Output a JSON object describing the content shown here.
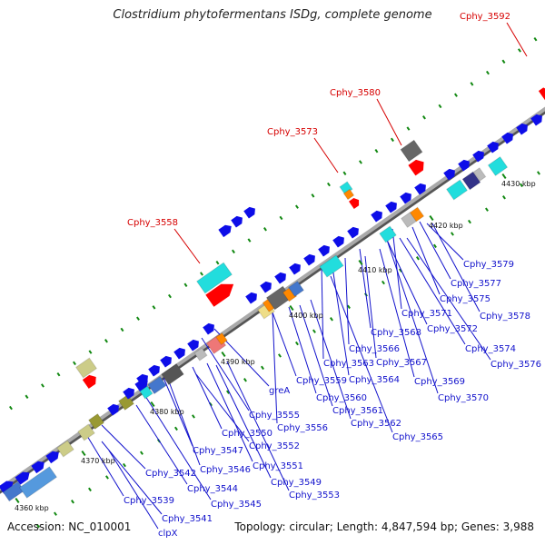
{
  "header": {
    "title": "Clostridium phytofermentans ISDg, complete genome"
  },
  "footer": {
    "accession": "Accession: NC_010001",
    "summary": "Topology: circular; Length: 4,847,594 bp; Genes: 3,988"
  },
  "ruler": {
    "ticks": [
      {
        "label": "4360 kbp"
      },
      {
        "label": "4370 kbp"
      },
      {
        "label": "4380 kbp"
      },
      {
        "label": "4390 kbp"
      },
      {
        "label": "4400 kbp"
      },
      {
        "label": "4410 kbp"
      },
      {
        "label": "4420 kbp"
      },
      {
        "label": "4430 kbp"
      }
    ]
  },
  "gene_labels": [
    {
      "label": "Cphy_3592",
      "highlight": true
    },
    {
      "label": "Cphy_3580",
      "highlight": true
    },
    {
      "label": "Cphy_3573",
      "highlight": true
    },
    {
      "label": "Cphy_3558",
      "highlight": true
    },
    {
      "label": "Cphy_3579"
    },
    {
      "label": "Cphy_3577"
    },
    {
      "label": "Cphy_3575"
    },
    {
      "label": "Cphy_3578"
    },
    {
      "label": "Cphy_3571"
    },
    {
      "label": "Cphy_3572"
    },
    {
      "label": "Cphy_3568"
    },
    {
      "label": "Cphy_3574"
    },
    {
      "label": "Cphy_3576"
    },
    {
      "label": "Cphy_3566"
    },
    {
      "label": "Cphy_3563"
    },
    {
      "label": "Cphy_3567"
    },
    {
      "label": "Cphy_3559"
    },
    {
      "label": "Cphy_3564"
    },
    {
      "label": "Cphy_3569"
    },
    {
      "label": "greA"
    },
    {
      "label": "Cphy_3560"
    },
    {
      "label": "Cphy_3570"
    },
    {
      "label": "Cphy_3561"
    },
    {
      "label": "Cphy_3555"
    },
    {
      "label": "Cphy_3562"
    },
    {
      "label": "Cphy_3556"
    },
    {
      "label": "Cphy_3550"
    },
    {
      "label": "Cphy_3565"
    },
    {
      "label": "Cphy_3547"
    },
    {
      "label": "Cphy_3552"
    },
    {
      "label": "Cphy_3551"
    },
    {
      "label": "Cphy_3546"
    },
    {
      "label": "Cphy_3542"
    },
    {
      "label": "Cphy_3549"
    },
    {
      "label": "Cphy_3544"
    },
    {
      "label": "Cphy_3553"
    },
    {
      "label": "Cphy_3545"
    },
    {
      "label": "Cphy_3539"
    },
    {
      "label": "Cphy_3541"
    },
    {
      "label": "clpX"
    }
  ],
  "colors": {
    "cds": "#0d0de8",
    "rrna": "#22dddd",
    "trna": "#ff0000",
    "misc": "#777777",
    "olive": "#999933",
    "khaki": "#cccc88",
    "backbone": "#888888",
    "gc_dot": "#118811",
    "highlight_label": "#d60000",
    "gene_label": "#1212cc"
  }
}
